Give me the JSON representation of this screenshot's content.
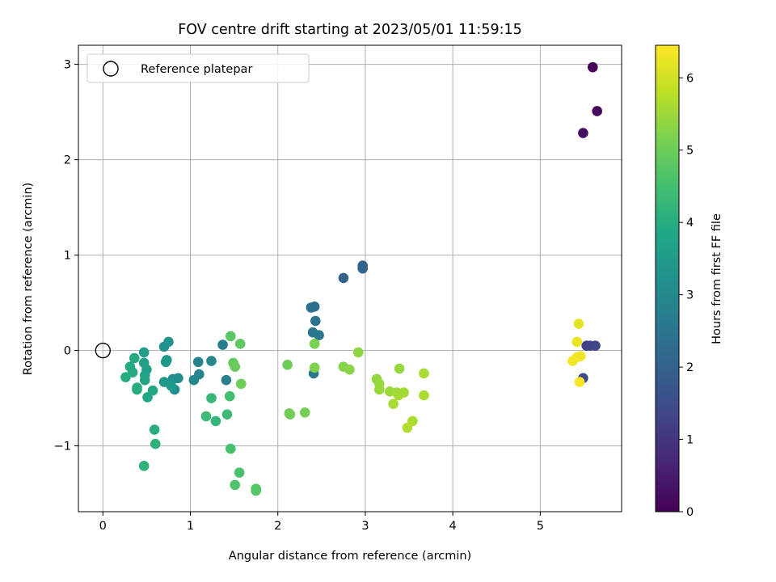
{
  "chart_data": {
    "type": "scatter",
    "title": "FOV centre drift starting at 2023/05/01 11:59:15",
    "xlabel": "Angular distance from reference (arcmin)",
    "ylabel": "Rotation from reference (arcmin)",
    "xlim": [
      -0.28,
      5.93
    ],
    "ylim": [
      -1.69,
      3.2
    ],
    "xticks": [
      0,
      1,
      2,
      3,
      4,
      5
    ],
    "yticks": [
      -1,
      0,
      1,
      2,
      3
    ],
    "xtick_labels": [
      "0",
      "1",
      "2",
      "3",
      "4",
      "5"
    ],
    "ytick_labels": [
      "−1",
      "0",
      "1",
      "2",
      "3"
    ],
    "grid": true,
    "legend": {
      "placement": "top-left",
      "label": "Reference platepar"
    },
    "reference_point": {
      "x": 0,
      "y": 0
    },
    "colorbar": {
      "label": "Hours from first FF file",
      "range": [
        0,
        6.45
      ],
      "ticks": [
        0,
        1,
        2,
        3,
        4,
        5,
        6
      ],
      "tick_labels": [
        "0",
        "1",
        "2",
        "3",
        "4",
        "5",
        "6"
      ],
      "colormap": "viridis"
    },
    "points": [
      {
        "x": 5.6,
        "y": 2.97,
        "h": 0.05
      },
      {
        "x": 5.65,
        "y": 2.51,
        "h": 0.15
      },
      {
        "x": 5.49,
        "y": 2.28,
        "h": 0.25
      },
      {
        "x": 5.53,
        "y": 0.05,
        "h": 1.25
      },
      {
        "x": 5.57,
        "y": 0.05,
        "h": 1.3
      },
      {
        "x": 5.63,
        "y": 0.05,
        "h": 1.35
      },
      {
        "x": 5.49,
        "y": -0.29,
        "h": 1.45
      },
      {
        "x": 2.97,
        "y": 0.89,
        "h": 2.0
      },
      {
        "x": 2.97,
        "y": 0.86,
        "h": 2.05
      },
      {
        "x": 2.75,
        "y": 0.76,
        "h": 2.1
      },
      {
        "x": 2.38,
        "y": 0.45,
        "h": 2.4
      },
      {
        "x": 2.42,
        "y": 0.46,
        "h": 2.35
      },
      {
        "x": 2.43,
        "y": 0.31,
        "h": 2.45
      },
      {
        "x": 2.4,
        "y": 0.19,
        "h": 2.5
      },
      {
        "x": 2.47,
        "y": 0.16,
        "h": 2.55
      },
      {
        "x": 2.41,
        "y": -0.24,
        "h": 2.6
      },
      {
        "x": 1.37,
        "y": 0.06,
        "h": 2.7
      },
      {
        "x": 1.41,
        "y": -0.31,
        "h": 2.75
      },
      {
        "x": 1.09,
        "y": -0.12,
        "h": 2.85
      },
      {
        "x": 1.1,
        "y": -0.25,
        "h": 2.9
      },
      {
        "x": 1.04,
        "y": -0.31,
        "h": 2.95
      },
      {
        "x": 1.24,
        "y": -0.11,
        "h": 3.0
      },
      {
        "x": 0.8,
        "y": -0.3,
        "h": 3.1
      },
      {
        "x": 0.86,
        "y": -0.29,
        "h": 3.15
      },
      {
        "x": 0.82,
        "y": -0.41,
        "h": 3.2
      },
      {
        "x": 0.7,
        "y": 0.04,
        "h": 3.25
      },
      {
        "x": 0.75,
        "y": 0.09,
        "h": 3.3
      },
      {
        "x": 0.73,
        "y": -0.1,
        "h": 3.35
      },
      {
        "x": 0.72,
        "y": -0.12,
        "h": 3.4
      },
      {
        "x": 0.7,
        "y": -0.33,
        "h": 3.45
      },
      {
        "x": 0.78,
        "y": -0.37,
        "h": 3.5
      },
      {
        "x": 0.47,
        "y": -0.02,
        "h": 3.55
      },
      {
        "x": 0.47,
        "y": -0.13,
        "h": 3.6
      },
      {
        "x": 0.5,
        "y": -0.2,
        "h": 3.65
      },
      {
        "x": 0.48,
        "y": -0.26,
        "h": 3.7
      },
      {
        "x": 0.48,
        "y": -0.31,
        "h": 3.75
      },
      {
        "x": 0.51,
        "y": -0.49,
        "h": 3.8
      },
      {
        "x": 0.57,
        "y": -0.42,
        "h": 3.85
      },
      {
        "x": 0.36,
        "y": -0.08,
        "h": 3.9
      },
      {
        "x": 0.31,
        "y": -0.17,
        "h": 3.92
      },
      {
        "x": 0.34,
        "y": -0.23,
        "h": 3.94
      },
      {
        "x": 0.26,
        "y": -0.28,
        "h": 3.96
      },
      {
        "x": 0.39,
        "y": -0.39,
        "h": 3.98
      },
      {
        "x": 0.39,
        "y": -0.41,
        "h": 4.0
      },
      {
        "x": 0.59,
        "y": -0.83,
        "h": 4.05
      },
      {
        "x": 0.6,
        "y": -0.98,
        "h": 4.1
      },
      {
        "x": 0.47,
        "y": -1.21,
        "h": 4.15
      },
      {
        "x": 1.29,
        "y": -0.74,
        "h": 4.25
      },
      {
        "x": 1.24,
        "y": -0.5,
        "h": 4.3
      },
      {
        "x": 1.42,
        "y": -0.67,
        "h": 4.35
      },
      {
        "x": 1.18,
        "y": -0.69,
        "h": 4.4
      },
      {
        "x": 1.45,
        "y": -0.48,
        "h": 4.5
      },
      {
        "x": 1.46,
        "y": -1.03,
        "h": 4.55
      },
      {
        "x": 1.56,
        "y": -1.28,
        "h": 4.6
      },
      {
        "x": 1.51,
        "y": -1.41,
        "h": 4.65
      },
      {
        "x": 1.75,
        "y": -1.45,
        "h": 4.7
      },
      {
        "x": 1.75,
        "y": -1.47,
        "h": 4.72
      },
      {
        "x": 1.46,
        "y": 0.15,
        "h": 4.8
      },
      {
        "x": 1.57,
        "y": 0.07,
        "h": 4.85
      },
      {
        "x": 1.49,
        "y": -0.13,
        "h": 4.9
      },
      {
        "x": 1.51,
        "y": -0.17,
        "h": 4.95
      },
      {
        "x": 1.58,
        "y": -0.35,
        "h": 5.0
      },
      {
        "x": 2.11,
        "y": -0.15,
        "h": 5.0
      },
      {
        "x": 2.13,
        "y": -0.66,
        "h": 5.05
      },
      {
        "x": 2.14,
        "y": -0.67,
        "h": 5.07
      },
      {
        "x": 2.31,
        "y": -0.65,
        "h": 5.1
      },
      {
        "x": 2.42,
        "y": 0.07,
        "h": 5.15
      },
      {
        "x": 2.42,
        "y": -0.18,
        "h": 5.2
      },
      {
        "x": 2.75,
        "y": -0.17,
        "h": 5.25
      },
      {
        "x": 2.82,
        "y": -0.2,
        "h": 5.3
      },
      {
        "x": 2.92,
        "y": -0.02,
        "h": 5.35
      },
      {
        "x": 3.13,
        "y": -0.3,
        "h": 5.4
      },
      {
        "x": 3.16,
        "y": -0.35,
        "h": 5.45
      },
      {
        "x": 3.16,
        "y": -0.41,
        "h": 5.47
      },
      {
        "x": 3.28,
        "y": -0.43,
        "h": 5.5
      },
      {
        "x": 3.36,
        "y": -0.44,
        "h": 5.52
      },
      {
        "x": 3.44,
        "y": -0.44,
        "h": 5.55
      },
      {
        "x": 3.38,
        "y": -0.47,
        "h": 5.57
      },
      {
        "x": 3.32,
        "y": -0.56,
        "h": 5.6
      },
      {
        "x": 3.39,
        "y": -0.19,
        "h": 5.45
      },
      {
        "x": 3.67,
        "y": -0.24,
        "h": 5.6
      },
      {
        "x": 3.67,
        "y": -0.47,
        "h": 5.62
      },
      {
        "x": 3.54,
        "y": -0.74,
        "h": 5.65
      },
      {
        "x": 3.48,
        "y": -0.81,
        "h": 5.67
      },
      {
        "x": 5.44,
        "y": 0.28,
        "h": 6.2
      },
      {
        "x": 5.42,
        "y": 0.09,
        "h": 6.25
      },
      {
        "x": 5.46,
        "y": -0.06,
        "h": 6.3
      },
      {
        "x": 5.42,
        "y": -0.07,
        "h": 6.32
      },
      {
        "x": 5.37,
        "y": -0.11,
        "h": 6.35
      },
      {
        "x": 5.45,
        "y": -0.33,
        "h": 6.4
      }
    ]
  }
}
